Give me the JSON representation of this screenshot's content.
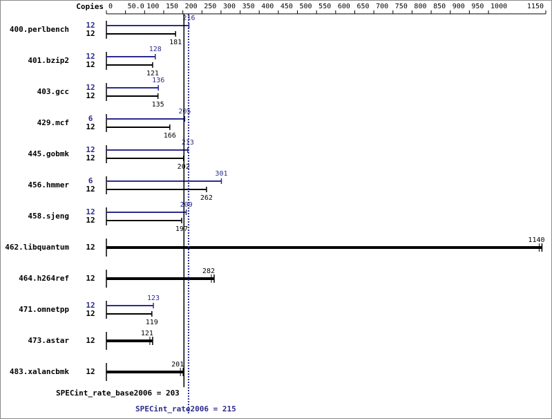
{
  "chart_data": {
    "type": "bar",
    "x_axis_label": "Copies",
    "categories": [
      "400.perlbench",
      "401.bzip2",
      "403.gcc",
      "429.mcf",
      "445.gobmk",
      "456.hmmer",
      "458.sjeng",
      "462.libquantum",
      "464.h264ref",
      "471.omnetpp",
      "473.astar",
      "483.xalancbmk"
    ],
    "series": [
      {
        "color": "#000000",
        "values": [
          181,
          121,
          135,
          166,
          202,
          262,
          197,
          1140,
          282,
          119,
          121,
          201
        ],
        "copies": [
          12,
          12,
          12,
          12,
          12,
          12,
          12,
          12,
          12,
          12,
          12,
          12
        ]
      },
      {
        "color": "#2b2b8c",
        "values": [
          216,
          128,
          136,
          205,
          213,
          301,
          209,
          null,
          null,
          123,
          null,
          null
        ],
        "copies": [
          12,
          12,
          12,
          6,
          12,
          6,
          12,
          null,
          null,
          12,
          null,
          null
        ]
      }
    ],
    "xlim": [
      0,
      1150
    ],
    "xticks": [
      0,
      {
        "value": 50,
        "label": "50.0"
      },
      100,
      150,
      200,
      250,
      300,
      350,
      400,
      450,
      500,
      550,
      600,
      650,
      700,
      750,
      800,
      850,
      900,
      950,
      1000,
      1150
    ],
    "summary": [
      {
        "label": "SPECint_rate_base2006 = 203",
        "value": 203,
        "color": "#000000"
      },
      {
        "label": "SPECint_rate2006 = 215",
        "value": 215,
        "color": "#2b2b8c"
      }
    ]
  }
}
